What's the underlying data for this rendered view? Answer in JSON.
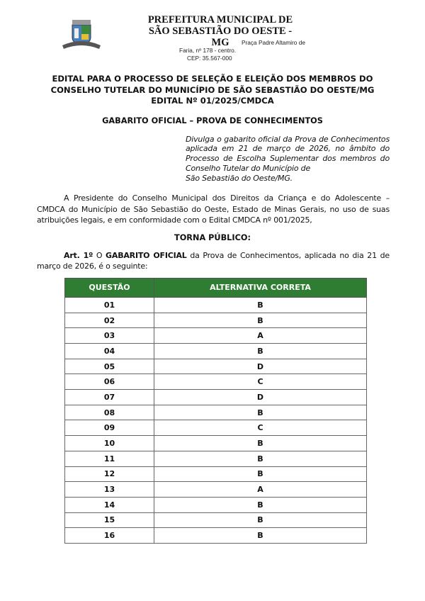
{
  "header": {
    "org_line1": "PREFEITURA MUNICIPAL DE",
    "org_line2": "SÃO SEBASTIÃO DO OESTE - MG",
    "address_line1": "Praça Padre Altamiro de",
    "address_line2": "Faria, nº 178 - centro.",
    "address_line3": "CEP: 35.567-000"
  },
  "title": {
    "line1": "EDITAL PARA O PROCESSO DE SELEÇÃO E ELEIÇÃO DOS MEMBROS DO",
    "line2": "CONSELHO TUTELAR DO MUNICÍPIO DE SÃO SEBASTIÃO DO OESTE/MG",
    "line3": "EDITAL Nº 01/2025/CMDCA"
  },
  "subtitle": "GABARITO OFICIAL – PROVA DE CONHECIMENTOS",
  "abstract_main": "Divulga o gabarito oficial da Prova de Conhecimentos aplicada em 21 de março de 2026, no âmbito do Processo de Escolha Suplementar dos membros do Conselho Tutelar do Município de",
  "abstract_last": "São Sebastião do Oeste/MG.",
  "intro": "A Presidente do Conselho Municipal dos Direitos da Criança e do Adolescente – CMDCA do Município de São Sebastião do Oeste, Estado de Minas Gerais, no uso de suas atribuições legais, e em conformidade com o Edital CMDCA nº 001/2025,",
  "torna_publico": "TORNA PÚBLICO:",
  "art1": {
    "label": "Art. 1º",
    "pre": " O ",
    "bold": "GABARITO OFICIAL",
    "text": " da Prova de Conhecimentos, aplicada no dia 21 de março de 2026, é o seguinte:"
  },
  "table": {
    "headers": [
      "QUESTÃO",
      "ALTERNATIVA CORRETA"
    ],
    "header_color": "#2e7d32",
    "rows": [
      [
        "01",
        "B"
      ],
      [
        "02",
        "B"
      ],
      [
        "03",
        "A"
      ],
      [
        "04",
        "B"
      ],
      [
        "05",
        "D"
      ],
      [
        "06",
        "C"
      ],
      [
        "07",
        "D"
      ],
      [
        "08",
        "B"
      ],
      [
        "09",
        "C"
      ],
      [
        "10",
        "B"
      ],
      [
        "11",
        "B"
      ],
      [
        "12",
        "B"
      ],
      [
        "13",
        "A"
      ],
      [
        "14",
        "B"
      ],
      [
        "15",
        "B"
      ],
      [
        "16",
        "B"
      ]
    ]
  }
}
